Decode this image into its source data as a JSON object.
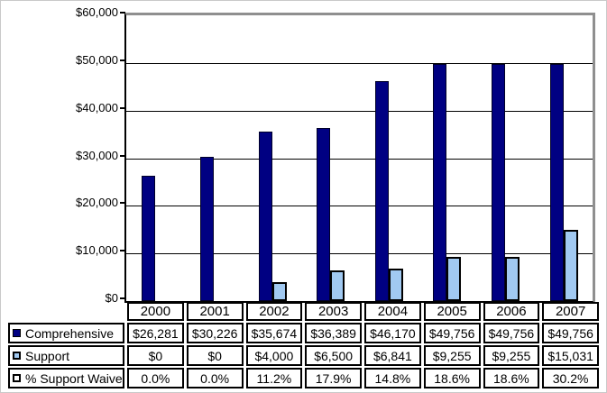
{
  "chart_data": {
    "type": "bar",
    "title": "",
    "categories": [
      "2000",
      "2001",
      "2002",
      "2003",
      "2004",
      "2005",
      "2006",
      "2007"
    ],
    "series": [
      {
        "name": "Comprehensive",
        "values": [
          26281,
          30226,
          35674,
          36389,
          46170,
          49756,
          49756,
          49756
        ],
        "color": "#000082"
      },
      {
        "name": "Support",
        "values": [
          0,
          0,
          4000,
          6500,
          6841,
          9255,
          9255,
          15031
        ],
        "color": "#A1C9F1"
      },
      {
        "name": "% Support Waiver",
        "values": [
          0.0,
          0.0,
          11.2,
          17.9,
          14.8,
          18.6,
          18.6,
          30.2
        ],
        "plotted": "table-only"
      }
    ],
    "xlabel": "",
    "ylabel": "",
    "ylim": [
      0,
      60000
    ],
    "ytick_labels": [
      "$60,000",
      "$50,000",
      "$40,000",
      "$30,000",
      "$20,000",
      "$10,000",
      "$0"
    ],
    "grid": true,
    "legend_position": "data-table-left"
  },
  "table": {
    "columns": [
      "2000",
      "2001",
      "2002",
      "2003",
      "2004",
      "2005",
      "2006",
      "2007"
    ],
    "rows": [
      {
        "label": "Comprehensive",
        "marker": "navy-filled-square",
        "marker_fill": "#000082",
        "marker_border": "#000000",
        "values": [
          "$26,281",
          "$30,226",
          "$35,674",
          "$36,389",
          "$46,170",
          "$49,756",
          "$49,756",
          "$49,756"
        ]
      },
      {
        "label": "Support",
        "marker": "light-blue-square",
        "marker_fill": "#A1C9F1",
        "marker_border": "#000000",
        "values": [
          "$0",
          "$0",
          "$4,000",
          "$6,500",
          "$6,841",
          "$9,255",
          "$9,255",
          "$15,031"
        ]
      },
      {
        "label": "% Support Waiver",
        "marker": "white-square",
        "marker_fill": "#FFFFFF",
        "marker_border": "#000000",
        "values": [
          "0.0%",
          "0.0%",
          "11.2%",
          "17.9%",
          "14.8%",
          "18.6%",
          "18.6%",
          "30.2%"
        ]
      }
    ]
  },
  "colors": {
    "comprehensive_bar": "#000082",
    "support_bar": "#A1C9F1",
    "gridline": "#000000",
    "frame_gray": "#8f8f8f",
    "background": "#ffffff"
  }
}
